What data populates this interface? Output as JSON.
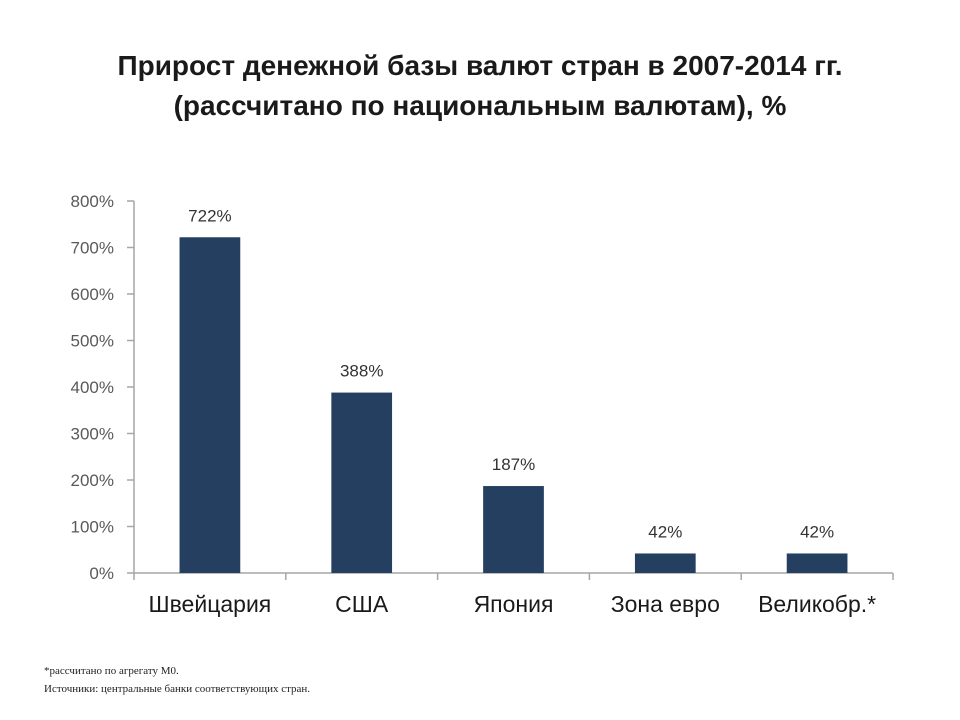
{
  "title": {
    "line1": "Прирост денежной базы валют стран в 2007-2014 гг.",
    "line2": "(рассчитано по национальным валютам), %"
  },
  "chart_data": {
    "type": "bar",
    "categories": [
      "Швейцария",
      "США",
      "Япония",
      "Зона евро",
      "Великобр.*"
    ],
    "values": [
      722,
      388,
      187,
      42,
      42
    ],
    "data_labels": [
      "722%",
      "388%",
      "187%",
      "42%",
      "42%"
    ],
    "ylim": [
      0,
      800
    ],
    "yticks": [
      0,
      100,
      200,
      300,
      400,
      500,
      600,
      700,
      800
    ],
    "ytick_labels": [
      "0%",
      "100%",
      "200%",
      "300%",
      "400%",
      "500%",
      "600%",
      "700%",
      "800%"
    ],
    "grid": false,
    "legend": "none",
    "bar_color": "#243f60"
  },
  "footnotes": {
    "note": "*рассчитано по агрегату М0.",
    "sources": "Источники: центральные банки соответствующих стран."
  }
}
